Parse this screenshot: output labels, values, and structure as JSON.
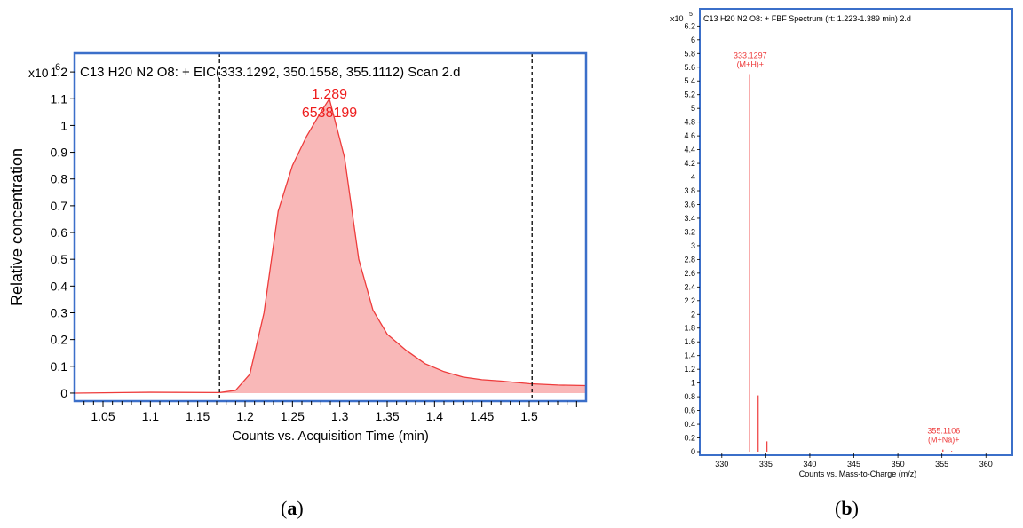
{
  "captions": {
    "a": {
      "open": "(",
      "letter": "a",
      "close": ")"
    },
    "b": {
      "open": "(",
      "letter": "b",
      "close": ")"
    }
  },
  "chart_data": [
    {
      "type": "area",
      "title": "C13 H20 N2 O8: + EIC(333.1292, 350.1558, 355.1112) Scan 2.d",
      "xlabel": "Counts vs. Acquisition Time (min)",
      "ylabel": "Relative concentration",
      "y_multiplier": "x10",
      "y_exponent": "6",
      "xlim": [
        1.02,
        1.56
      ],
      "ylim": [
        -0.03,
        1.27
      ],
      "x_ticks": [
        1.05,
        1.1,
        1.15,
        1.2,
        1.25,
        1.3,
        1.35,
        1.4,
        1.45,
        1.5
      ],
      "x_tick_labels": [
        "1.05",
        "1.1",
        "1.15",
        "1.2",
        "1.25",
        "1.3",
        "1.35",
        "1.4",
        "1.45",
        "1.5"
      ],
      "y_ticks": [
        0,
        0.1,
        0.2,
        0.3,
        0.4,
        0.5,
        0.6,
        0.7,
        0.8,
        0.9,
        1,
        1.1,
        1.2
      ],
      "y_tick_labels": [
        "0",
        "0.1",
        "0.2",
        "0.3",
        "0.4",
        "0.5",
        "0.6",
        "0.7",
        "0.8",
        "0.9",
        "1",
        "1.1",
        "1.2"
      ],
      "x": [
        1.02,
        1.1,
        1.173,
        1.19,
        1.205,
        1.22,
        1.235,
        1.25,
        1.265,
        1.28,
        1.289,
        1.305,
        1.32,
        1.335,
        1.35,
        1.37,
        1.39,
        1.41,
        1.43,
        1.45,
        1.47,
        1.5,
        1.53,
        1.56
      ],
      "y": [
        0.0,
        0.003,
        0.002,
        0.01,
        0.07,
        0.3,
        0.68,
        0.85,
        0.96,
        1.05,
        1.1,
        0.88,
        0.5,
        0.31,
        0.22,
        0.16,
        0.11,
        0.08,
        0.06,
        0.05,
        0.045,
        0.035,
        0.03,
        0.028
      ],
      "peak": {
        "x_label": "1.289",
        "value_label": "6538199",
        "x": 1.289,
        "y": 1.1
      },
      "markers": [
        1.173,
        1.503
      ],
      "fill_color": "#f9b8b8",
      "line_color": "#ee3b3b",
      "frame_color": "#3b6fc9"
    },
    {
      "type": "bar",
      "title": "C13 H20 N2 O8: + FBF Spectrum (rt: 1.223-1.389 min) 2.d",
      "xlabel": "Counts vs. Mass-to-Charge (m/z)",
      "y_multiplier": "x10",
      "y_exponent": "5",
      "xlim": [
        327.5,
        363
      ],
      "ylim": [
        0,
        6.45
      ],
      "x_ticks": [
        330,
        335,
        340,
        345,
        350,
        355,
        360
      ],
      "x_tick_labels": [
        "330",
        "335",
        "340",
        "345",
        "350",
        "355",
        "360"
      ],
      "y_ticks": [
        0,
        0.2,
        0.4,
        0.6,
        0.8,
        1,
        1.2,
        1.4,
        1.6,
        1.8,
        2,
        2.2,
        2.4,
        2.6,
        2.8,
        3,
        3.2,
        3.4,
        3.6,
        3.8,
        4,
        4.2,
        4.4,
        4.6,
        4.8,
        5,
        5.2,
        5.4,
        5.6,
        5.8,
        6,
        6.2
      ],
      "y_tick_labels": [
        "0",
        "0.2",
        "0.4",
        "0.6",
        "0.8",
        "1",
        "1.2",
        "1.4",
        "1.6",
        "1.8",
        "2",
        "2.2",
        "2.4",
        "2.6",
        "2.8",
        "3",
        "3.2",
        "3.4",
        "3.6",
        "3.8",
        "4",
        "4.2",
        "4.4",
        "4.6",
        "4.8",
        "5",
        "5.2",
        "5.4",
        "5.6",
        "5.8",
        "6",
        "6.2"
      ],
      "peaks": [
        {
          "mz": 333.1297,
          "intensity": 5.5
        },
        {
          "mz": 334.13,
          "intensity": 0.82
        },
        {
          "mz": 335.13,
          "intensity": 0.15
        },
        {
          "mz": 355.1106,
          "intensity": 0.03
        },
        {
          "mz": 356.1,
          "intensity": 0.01
        }
      ],
      "annotations": [
        {
          "mz": 333.1297,
          "intensity": 5.5,
          "lines": [
            "333.1297",
            "(M+H)+"
          ]
        },
        {
          "mz": 355.1106,
          "intensity": 0.03,
          "lines": [
            "355.1106",
            "(M+Na)+"
          ]
        }
      ],
      "line_color": "#ee3b3b",
      "frame_color": "#3b6fc9"
    }
  ]
}
